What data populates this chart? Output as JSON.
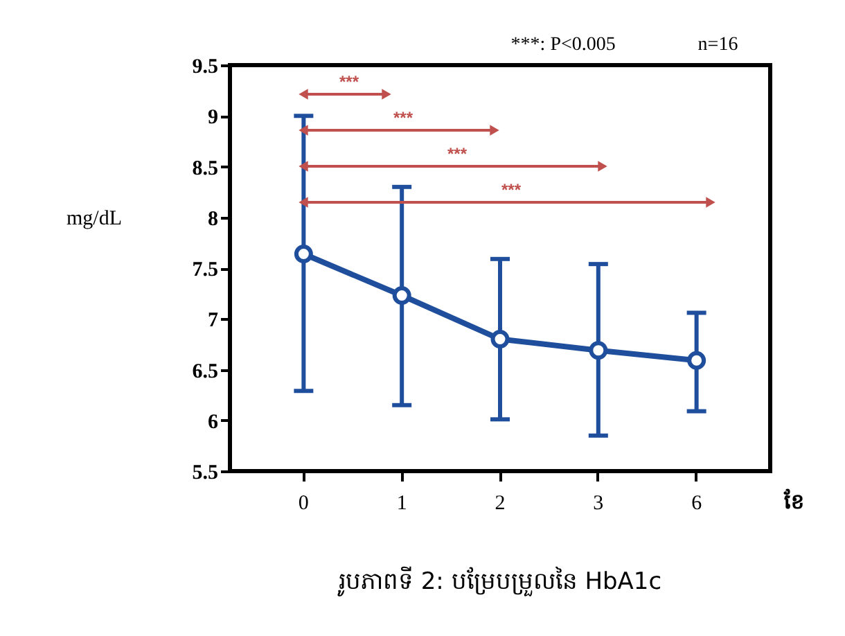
{
  "chart_data": {
    "type": "line",
    "title": "រូបភាពទី 2: បម្រែបម្រួលនៃ HbA1c",
    "xlabel": "ខែ",
    "ylabel": "mg/dL",
    "categories": [
      "0",
      "1",
      "2",
      "3",
      "6"
    ],
    "series": [
      {
        "color": "#1f4e9c",
        "values": [
          7.64,
          7.23,
          6.8,
          6.69,
          6.59
        ],
        "errors": [
          [
            6.29,
            9.0
          ],
          [
            6.15,
            8.3
          ],
          [
            6.01,
            7.59
          ],
          [
            5.85,
            7.54
          ],
          [
            6.09,
            7.06
          ]
        ]
      }
    ],
    "ylim": [
      5.5,
      9.5
    ],
    "yticks": [
      5.5,
      6,
      6.5,
      7,
      7.5,
      8,
      8.5,
      9,
      9.5
    ],
    "annotations": [
      "***: P<0.005",
      "n=16",
      "***",
      "***",
      "***",
      "***"
    ],
    "marker": "circle",
    "line_style": "solid"
  }
}
